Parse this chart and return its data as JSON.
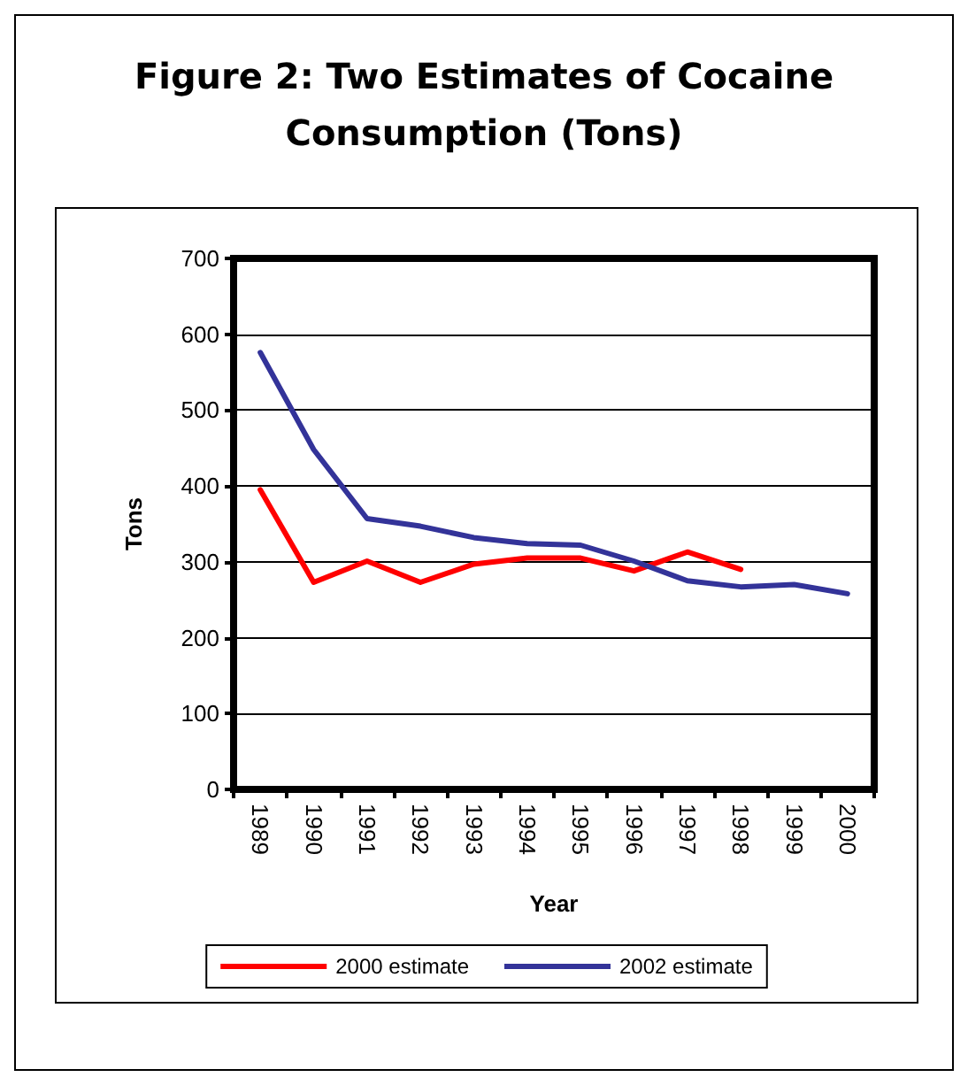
{
  "chart_data": {
    "type": "line",
    "title": "Figure 2: Two Estimates of Cocaine Consumption (Tons)",
    "xlabel": "Year",
    "ylabel": "Tons",
    "categories": [
      "1989",
      "1990",
      "1991",
      "1992",
      "1993",
      "1994",
      "1995",
      "1996",
      "1997",
      "1998",
      "1999",
      "2000"
    ],
    "series": [
      {
        "name": "2000 estimate",
        "color": "#ff0000",
        "values": [
          395,
          273,
          301,
          273,
          297,
          305,
          305,
          288,
          313,
          290,
          null,
          null
        ]
      },
      {
        "name": "2002 estimate",
        "color": "#333399",
        "values": [
          576,
          448,
          357,
          347,
          332,
          324,
          322,
          301,
          275,
          267,
          270,
          258
        ]
      }
    ],
    "ylim": [
      0,
      700
    ],
    "yticks": [
      0,
      100,
      200,
      300,
      400,
      500,
      600,
      700
    ],
    "grid": "y",
    "legend": "bottom",
    "marker": "none",
    "line_style": "solid"
  }
}
